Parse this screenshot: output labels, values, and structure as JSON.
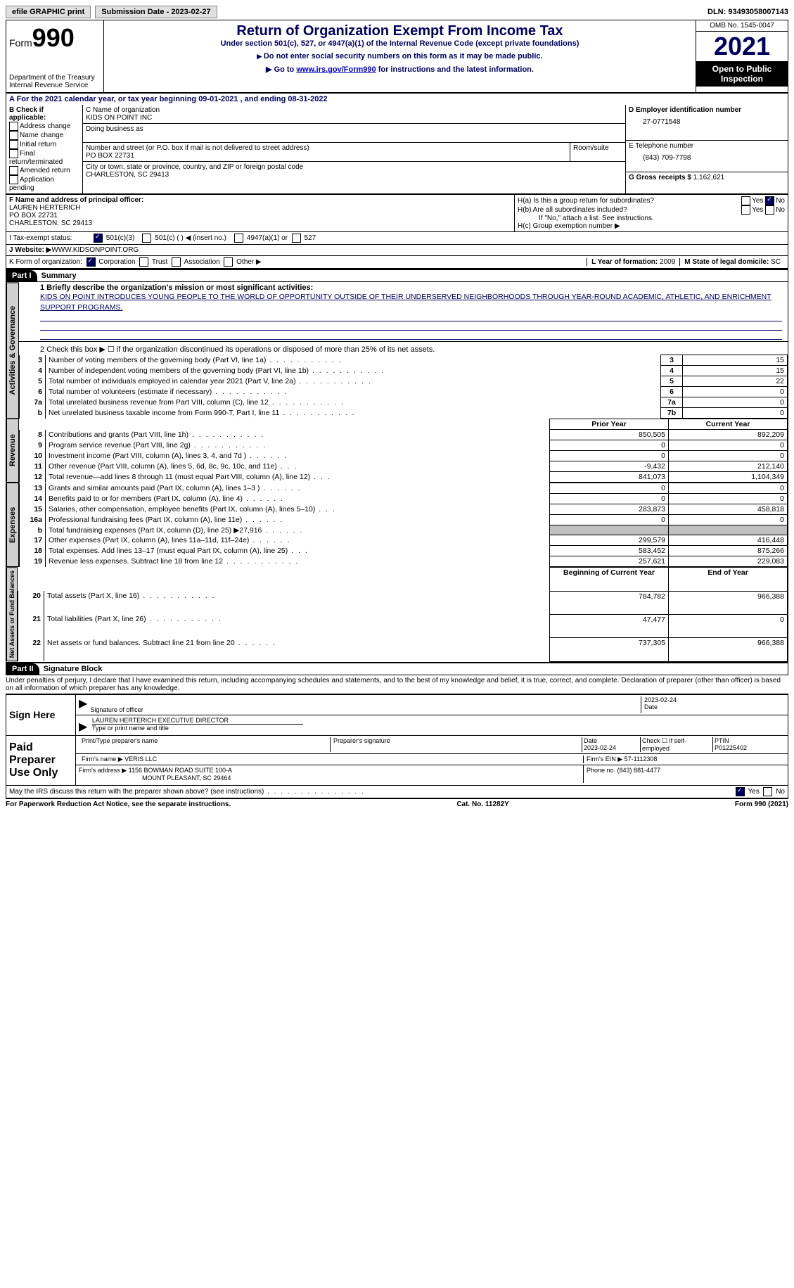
{
  "topbar": {
    "efile": "efile GRAPHIC print",
    "submission_label": "Submission Date - 2023-02-27",
    "dln_label": "DLN: 93493058007143"
  },
  "header": {
    "form_prefix": "Form",
    "form_number": "990",
    "dept": "Department of the Treasury Internal Revenue Service",
    "title": "Return of Organization Exempt From Income Tax",
    "subtitle": "Under section 501(c), 527, or 4947(a)(1) of the Internal Revenue Code (except private foundations)",
    "note1": "Do not enter social security numbers on this form as it may be made public.",
    "note2_pre": "Go to ",
    "note2_link": "www.irs.gov/Form990",
    "note2_post": " for instructions and the latest information.",
    "omb": "OMB No. 1545-0047",
    "year": "2021",
    "open": "Open to Public Inspection"
  },
  "row_a": "A  For the 2021 calendar year, or tax year beginning 09-01-2021    , and ending 08-31-2022",
  "box_b": {
    "title": "B Check if applicable:",
    "opts": [
      "Address change",
      "Name change",
      "Initial return",
      "Final return/terminated",
      "Amended return",
      "Application pending"
    ]
  },
  "box_c": {
    "label": "C Name of organization",
    "name": "KIDS ON POINT INC",
    "dba_label": "Doing business as",
    "addr_label": "Number and street (or P.O. box if mail is not delivered to street address)",
    "room": "Room/suite",
    "addr": "PO BOX 22731",
    "city_label": "City or town, state or province, country, and ZIP or foreign postal code",
    "city": "CHARLESTON, SC  29413"
  },
  "box_d": {
    "label": "D Employer identification number",
    "val": "27-0771548"
  },
  "box_e": {
    "label": "E Telephone number",
    "val": "(843) 709-7798"
  },
  "box_g": {
    "label": "G Gross receipts $ ",
    "val": "1,162,621"
  },
  "box_f": {
    "label": "F Name and address of principal officer:",
    "name": "LAUREN HERTERICH",
    "addr1": "PO BOX 22731",
    "addr2": "CHARLESTON, SC  29413"
  },
  "box_h": {
    "ha": "H(a)  Is this a group return for subordinates?",
    "hb": "H(b)  Are all subordinates included?",
    "hb_note": "If \"No,\" attach a list. See instructions.",
    "hc": "H(c)  Group exemption number ▶",
    "yes": "Yes",
    "no": "No"
  },
  "row_i": {
    "label": "I   Tax-exempt status:",
    "o1": "501(c)(3)",
    "o2": "501(c) (  ) ◀ (insert no.)",
    "o3": "4947(a)(1) or",
    "o4": "527"
  },
  "row_j": {
    "label": "J   Website: ▶",
    "val": "  WWW.KIDSONPOINT.ORG"
  },
  "row_k": {
    "label": "K Form of organization:",
    "o1": "Corporation",
    "o2": "Trust",
    "o3": "Association",
    "o4": "Other ▶"
  },
  "row_l": {
    "label": "L Year of formation: ",
    "val": "2009"
  },
  "row_m": {
    "label": "M State of legal domicile: ",
    "val": "SC"
  },
  "part1": {
    "hdr": "Part I",
    "title": "Summary",
    "l1a": "1    Briefly describe the organization's mission or most significant activities:",
    "l1b": "KIDS ON POINT INTRODUCES YOUNG PEOPLE TO THE WORLD OF OPPORTUNITY OUTSIDE OF THEIR UNDERSERVED NEIGHBORHOODS THROUGH YEAR-ROUND ACADEMIC, ATHLETIC, AND ENRICHMENT SUPPORT PROGRAMS.",
    "l2": "2    Check this box ▶ ☐ if the organization discontinued its operations or disposed of more than 25% of its net assets.",
    "rows_ag": [
      {
        "n": "3",
        "t": "Number of voting members of the governing body (Part VI, line 1a)",
        "b": "3",
        "v": "15"
      },
      {
        "n": "4",
        "t": "Number of independent voting members of the governing body (Part VI, line 1b)",
        "b": "4",
        "v": "15"
      },
      {
        "n": "5",
        "t": "Total number of individuals employed in calendar year 2021 (Part V, line 2a)",
        "b": "5",
        "v": "22"
      },
      {
        "n": "6",
        "t": "Total number of volunteers (estimate if necessary)",
        "b": "6",
        "v": "0"
      },
      {
        "n": "7a",
        "t": "Total unrelated business revenue from Part VIII, column (C), line 12",
        "b": "7a",
        "v": "0"
      },
      {
        "n": " b",
        "t": "Net unrelated business taxable income from Form 990-T, Part I, line 11",
        "b": "7b",
        "v": "0"
      }
    ],
    "col_hdr_prior": "Prior Year",
    "col_hdr_curr": "Current Year",
    "rows_rev": [
      {
        "n": "8",
        "t": "Contributions and grants (Part VIII, line 1h)",
        "p": "850,505",
        "c": "892,209"
      },
      {
        "n": "9",
        "t": "Program service revenue (Part VIII, line 2g)",
        "p": "0",
        "c": "0"
      },
      {
        "n": "10",
        "t": "Investment income (Part VIII, column (A), lines 3, 4, and 7d )",
        "p": "0",
        "c": "0"
      },
      {
        "n": "11",
        "t": "Other revenue (Part VIII, column (A), lines 5, 6d, 8c, 9c, 10c, and 11e)",
        "p": "-9,432",
        "c": "212,140"
      },
      {
        "n": "12",
        "t": "Total revenue—add lines 8 through 11 (must equal Part VIII, column (A), line 12)",
        "p": "841,073",
        "c": "1,104,349"
      }
    ],
    "rows_exp": [
      {
        "n": "13",
        "t": "Grants and similar amounts paid (Part IX, column (A), lines 1–3 )",
        "p": "0",
        "c": "0"
      },
      {
        "n": "14",
        "t": "Benefits paid to or for members (Part IX, column (A), line 4)",
        "p": "0",
        "c": "0"
      },
      {
        "n": "15",
        "t": "Salaries, other compensation, employee benefits (Part IX, column (A), lines 5–10)",
        "p": "283,873",
        "c": "458,818"
      },
      {
        "n": "16a",
        "t": "Professional fundraising fees (Part IX, column (A), line 11e)",
        "p": "0",
        "c": "0"
      },
      {
        "n": "b",
        "t": "Total fundraising expenses (Part IX, column (D), line 25) ▶27,916",
        "p": "shade",
        "c": "shade"
      },
      {
        "n": "17",
        "t": "Other expenses (Part IX, column (A), lines 11a–11d, 11f–24e)",
        "p": "299,579",
        "c": "416,448"
      },
      {
        "n": "18",
        "t": "Total expenses. Add lines 13–17 (must equal Part IX, column (A), line 25)",
        "p": "583,452",
        "c": "875,266"
      },
      {
        "n": "19",
        "t": "Revenue less expenses. Subtract line 18 from line 12",
        "p": "257,621",
        "c": "229,083"
      }
    ],
    "col_hdr_beg": "Beginning of Current Year",
    "col_hdr_end": "End of Year",
    "rows_net": [
      {
        "n": "20",
        "t": "Total assets (Part X, line 16)",
        "p": "784,782",
        "c": "966,388"
      },
      {
        "n": "21",
        "t": "Total liabilities (Part X, line 26)",
        "p": "47,477",
        "c": "0"
      },
      {
        "n": "22",
        "t": "Net assets or fund balances. Subtract line 21 from line 20",
        "p": "737,305",
        "c": "966,388"
      }
    ],
    "tab_ag": "Activities & Governance",
    "tab_rev": "Revenue",
    "tab_exp": "Expenses",
    "tab_net": "Net Assets or Fund Balances"
  },
  "part2": {
    "hdr": "Part II",
    "title": "Signature Block",
    "decl": "Under penalties of perjury, I declare that I have examined this return, including accompanying schedules and statements, and to the best of my knowledge and belief, it is true, correct, and complete. Declaration of preparer (other than officer) is based on all information of which preparer has any knowledge.",
    "sign_here": "Sign Here",
    "sig_officer": "Signature of officer",
    "sig_date": "2023-02-24",
    "date_lbl": "Date",
    "name_title": "LAUREN HERTERICH  EXECUTIVE DIRECTOR",
    "name_lbl": "Type or print name and title",
    "paid": "Paid Preparer Use Only",
    "pt_name_lbl": "Print/Type preparer's name",
    "pt_sig_lbl": "Preparer's signature",
    "pt_date": "2023-02-24",
    "pt_date_lbl": "Date",
    "chk_self": "Check ☐ if self-employed",
    "ptin_lbl": "PTIN",
    "ptin": "P01225402",
    "firm_name_lbl": "Firm's name    ▶ ",
    "firm_name": "VERIS LLC",
    "firm_ein_lbl": "Firm's EIN ▶ ",
    "firm_ein": "57-1112308",
    "firm_addr_lbl": "Firm's address ▶ ",
    "firm_addr": "1156 BOWMAN ROAD SUITE 100-A",
    "firm_addr2": "MOUNT PLEASANT, SC  29464",
    "phone_lbl": "Phone no. ",
    "phone": "(843) 881-4477",
    "discuss": "May the IRS discuss this return with the preparer shown above? (see instructions)"
  },
  "footer": {
    "l": "For Paperwork Reduction Act Notice, see the separate instructions.",
    "c": "Cat. No. 11282Y",
    "r": "Form 990 (2021)"
  }
}
